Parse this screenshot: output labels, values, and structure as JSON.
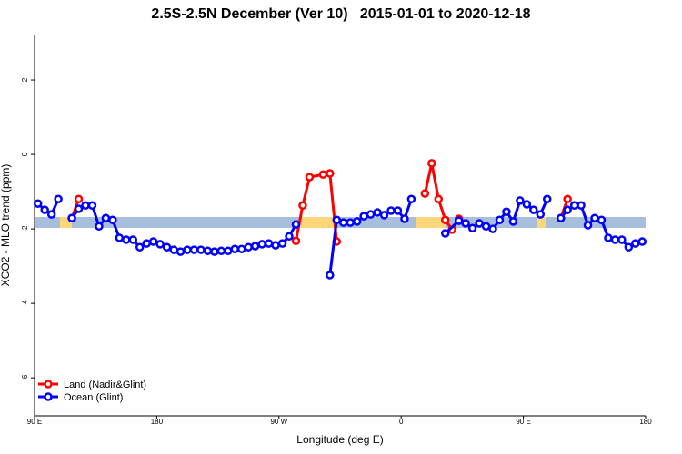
{
  "chart_data": {
    "type": "line",
    "title": "2.5S-2.5N December (Ver 10)   2015-01-01 to 2020-12-18",
    "x_label": "Longitude (deg E)",
    "y_label": "XCO2 - MLO trend (ppm)",
    "xlim": [
      90,
      540
    ],
    "ylim": [
      -7.02,
      3.22
    ],
    "xticks": [
      {
        "value": 90,
        "label": "90 E"
      },
      180,
      {
        "value": 270,
        "label": "90 W"
      },
      {
        "value": 360,
        "label": "0"
      },
      {
        "value": 450,
        "label": "90 E"
      },
      {
        "value": 540,
        "label": "180"
      }
    ],
    "yticks": [
      -6,
      -4,
      -2,
      0,
      2
    ],
    "legend": "bottomleft",
    "series": [
      {
        "name": "Land (Nadir&Glint)",
        "color": "#ff0000",
        "x": [
          117.5,
          122.5,
          null,
          282.5,
          287.5,
          292.5,
          302.5,
          307.5,
          312.5,
          null,
          377.5,
          382.5,
          387.5,
          392.5,
          397.5,
          402.5,
          null,
          477.5,
          482.5
        ],
        "values": [
          -1.71,
          -1.2,
          null,
          -2.32,
          -1.37,
          -0.61,
          -0.54,
          -0.51,
          -2.34,
          null,
          -1.05,
          -0.24,
          -1.2,
          -1.76,
          -2.02,
          -1.73,
          null,
          -1.71,
          -1.2
        ]
      },
      {
        "name": "Ocean (Glint)",
        "color": "#0000ff",
        "x": [
          92.5,
          97.5,
          102.5,
          107.5,
          null,
          117.5,
          122.5,
          127.5,
          132.5,
          137.5,
          142.5,
          147.5,
          152.5,
          157.5,
          162.5,
          167.5,
          172.5,
          177.5,
          182.5,
          187.5,
          192.5,
          197.5,
          202.5,
          207.5,
          212.5,
          217.5,
          222.5,
          227.5,
          232.5,
          237.5,
          242.5,
          247.5,
          252.5,
          257.5,
          262.5,
          267.5,
          272.5,
          277.5,
          282.5,
          null,
          307.5,
          312.5,
          317.5,
          322.5,
          327.5,
          332.5,
          337.5,
          342.5,
          347.5,
          352.5,
          357.5,
          362.5,
          367.5,
          null,
          392.5,
          402.5,
          407.5,
          412.5,
          417.5,
          422.5,
          427.5,
          432.5,
          437.5,
          442.5,
          447.5,
          452.5,
          457.5,
          462.5,
          467.5,
          null,
          477.5,
          482.5,
          487.5,
          492.5,
          497.5,
          502.5,
          507.5,
          512.5,
          517.5,
          522.5,
          527.5,
          532.5,
          537.5
        ],
        "values": [
          -1.32,
          -1.49,
          -1.61,
          -1.2,
          null,
          -1.71,
          -1.46,
          -1.37,
          -1.37,
          -1.93,
          -1.71,
          -1.76,
          -2.24,
          -2.29,
          -2.29,
          -2.49,
          -2.39,
          -2.34,
          -2.41,
          -2.49,
          -2.56,
          -2.61,
          -2.56,
          -2.56,
          -2.56,
          -2.59,
          -2.61,
          -2.59,
          -2.59,
          -2.54,
          -2.54,
          -2.49,
          -2.46,
          -2.41,
          -2.39,
          -2.44,
          -2.39,
          -2.2,
          -1.88,
          null,
          -3.24,
          -1.76,
          -1.83,
          -1.83,
          -1.8,
          -1.66,
          -1.61,
          -1.56,
          -1.63,
          -1.51,
          -1.51,
          -1.73,
          -1.2,
          null,
          -2.12,
          -1.78,
          -1.85,
          -1.98,
          -1.85,
          -1.93,
          -2.0,
          -1.76,
          -1.54,
          -1.8,
          -1.24,
          -1.34,
          -1.49,
          -1.61,
          -1.2,
          null,
          -1.71,
          -1.49,
          -1.37,
          -1.37,
          -1.9,
          -1.71,
          -1.76,
          -2.24,
          -2.29,
          -2.29,
          -2.49,
          -2.39,
          -2.34
        ]
      }
    ]
  }
}
